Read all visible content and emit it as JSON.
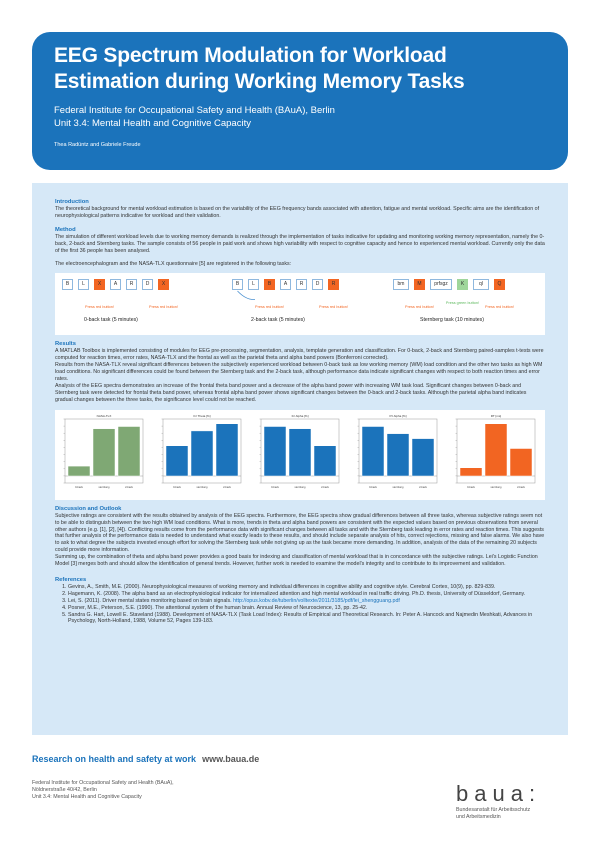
{
  "header": {
    "title_line1": "EEG Spectrum Modulation for Workload",
    "title_line2": "Estimation during Working Memory Tasks",
    "institute": "Federal Institute for Occupational Safety and Health (BAuA), Berlin",
    "unit": "Unit 3.4: Mental Health and Cognitive Capacity",
    "authors": "Thea Radüntz and Gabriele Freude",
    "color": "#1b73bb"
  },
  "introduction": {
    "heading": "Introduction",
    "text": "The theoretical background for mental workload estimation is based on the variability of the EEG frequency bands associated with attention, fatigue and mental workload. Specific aims are the identification of neurophysiological patterns indicative for workload and their validation."
  },
  "method": {
    "heading": "Method",
    "text": "The simulation of different workload levels due to working memory demands is realized through the implementation of tasks indicative for updating and monitoring working memory representation, namely the 0-back, 2-back and Sternberg tasks. The sample consists of 56 people in paid work and shows high variability with respect to cognitive capacity and hence to experienced mental workload. Currently only the data of the first 36 people has been analysed.",
    "text2": "The electroencephalogram and the NASA-TLX questionnaire [5] are registered in the following tasks:"
  },
  "tasks": [
    {
      "label": "0-back task (5 minutes)",
      "items": [
        "B",
        "L",
        "X",
        "A",
        "R",
        "D",
        "X"
      ],
      "targets": [
        2,
        6
      ],
      "press": [
        "Press red button!",
        "Press red button!"
      ]
    },
    {
      "label": "2-back task (5 minutes)",
      "items": [
        "B",
        "L",
        "B",
        "A",
        "R",
        "D",
        "R"
      ],
      "targets": [
        2,
        6
      ],
      "press": [
        "Press red button!",
        "Press red button!"
      ]
    },
    {
      "label": "Sternberg task (10 minutes)",
      "items": [
        "bm",
        "M",
        "prfsgz",
        "K",
        "ql",
        "Q"
      ],
      "red": [
        1,
        5
      ],
      "green": [
        3
      ],
      "press": [
        "Press red button!",
        "Press green button!",
        "Press red button!"
      ]
    }
  ],
  "results": {
    "heading": "Results",
    "p1": "A MATLAB Toolbox is implemented consisting of modules for EEG pre-processing, segmentation, analysis, template generation and classification. For 0-back, 2-back and Sternberg paired-samples t-tests were computed for reaction times, error rates, NASA-TLX and the frontal as well as the parietal theta and alpha band powers (Bonferroni corrected).",
    "p2": "Results from the NASA-TLX reveal significant differences between the subjectively experienced workload between 0-back task as low working memory (WM) load condition and the other two tasks as high WM load conditions. No significant differences could be found between the Sternberg task and the 2-back task, although performance data indicate significant changes with respect to both reaction times and error rates.",
    "p3": "Analysis of the EEG spectra demonstrates an increase of the frontal theta band power and a decrease of the alpha band power with increasing WM task load. Significant changes between 0-back and Sternberg task were detected for frontal theta band power, whereas frontal alpha band power shows significant changes between the 0-back and 2-back tasks. Although the parietal alpha band indicates gradual changes between the three tasks, the significance level could not be reached."
  },
  "chart_data": [
    {
      "type": "bar",
      "title": "NASA-TLX",
      "categories": [
        "0-back",
        "sternberg",
        "2-back"
      ],
      "values": [
        0.18,
        0.86,
        0.9
      ],
      "color": "#7fa874"
    },
    {
      "type": "bar",
      "title": "Fz Theta [%]",
      "categories": [
        "0-back",
        "sternberg",
        "2-back"
      ],
      "values": [
        0.55,
        0.82,
        0.95
      ],
      "color": "#1b73bb"
    },
    {
      "type": "bar",
      "title": "Fz Alpha [%]",
      "categories": [
        "0-back",
        "sternberg",
        "2-back"
      ],
      "values": [
        0.9,
        0.86,
        0.55
      ],
      "color": "#1b73bb"
    },
    {
      "type": "bar",
      "title": "Pz Alpha [%]",
      "categories": [
        "0-back",
        "sternberg",
        "2-back"
      ],
      "values": [
        0.9,
        0.77,
        0.68
      ],
      "color": "#1b73bb"
    },
    {
      "type": "bar",
      "title": "RT [ms]",
      "categories": [
        "0-back",
        "sternberg",
        "2-back"
      ],
      "values": [
        0.15,
        0.95,
        0.5
      ],
      "color": "#f26522"
    }
  ],
  "discussion": {
    "heading": "Discussion and Outlook",
    "p1": "Subjective ratings are consistent with the results obtained by analysis of the EEG spectra. Furthermore, the EEG spectra show gradual differences between all three tasks, whereas subjective ratings seem not to be able to distinguish between the two high WM load conditions. What is more, trends in theta and alpha band powers are consistent with the expected values based on previous observations from several other authors (e.g. [1], [2], [4]). Conflicting results come from the performance data with significant changes between all tasks and with the Sternberg task leading in error rates and reaction times. This suggests that further analysis of the performance data is needed to understand what exactly leads to these results, and should include separate analysis of hits, correct rejections, missing and false alarms. We also have to ask to what degree the subjects invested enough effort for solving the Sternberg task while not giving up as the task became more demanding. In addition, analysis of the data of the remaining 20 subjects could provide more information.",
    "p2": "Summing up, the combination of theta and alpha band power provides a good basis for indexing and classification of mental workload that is in concordance with the subjective ratings. Lei's Logistic Function Model [3] merges both and should allow the identification of general trends. However, further work is needed to examine the model's integrity and to contribute to its improvement and validation."
  },
  "references": {
    "heading": "References",
    "items": [
      "Gevins, A., Smith, M.E. (2000). Neurophysiological measures of working memory and individual differences in cognitive ability and cognitive style. Cerebral Cortex, 10(9), pp. 829-839.",
      "Hagemann, K. (2008). The alpha band as an electrophysiological indicator for internalized attention and high mental workload in real traffic driving. Ph.D. thesis, University of Düsseldorf, Germany.",
      "Lei, S. (2011). Driver mental states monitoring based on brain signals.",
      "Posner, M.E., Peterson, S.E. (1990). The attentional system of the human brain. Annual Review of Neuroscience, 13, pp. 25-42.",
      "Sandra G. Hart, Lowell E. Staveland (1988). Development of NASA-TLX (Task Load Index): Results of Empirical and Theoretical Research. In: Peter A. Hancock and Najmedin Meshkati, Advances in Psychology, North-Holland, 1988, Volume 52, Pages 139-183."
    ],
    "link3": "http://opus.kobv.de/tuberlin/volltexte/2011/3185/pdf/lei_shengguang.pdf"
  },
  "footer": {
    "slogan": "Research on health and safety at work",
    "url": "www.baua.de",
    "addr1": "Federal Institute for Occupational Safety and Health (BAuA),",
    "addr2": "Nöldnerstraße 40/42, Berlin",
    "addr3": "Unit 3.4: Mental Health and Cognitive Capacity",
    "logo": "baua:",
    "logo_sub1": "Bundesanstalt für Arbeitsschutz",
    "logo_sub2": "und Arbeitsmedizin"
  }
}
